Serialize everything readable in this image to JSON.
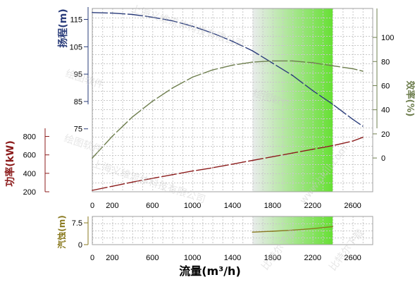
{
  "colors": {
    "head": "#2a3c7a",
    "efficiency": "#6f7f4f",
    "power": "#8c1c1c",
    "npsh": "#8a7a20",
    "band_start": "#e9ecec",
    "band_end": "#66e033",
    "grid": "#c8c8c8"
  },
  "watermarks": [
    "上海义维流体科技有限公司",
    "绘图软件",
    "绘图软件",
    "绘图软件",
    "上海义维流体科技有限公司",
    "比特尔下载",
    "www.bkill.com",
    "比特尔下载"
  ],
  "chart_data": [
    {
      "type": "line",
      "name": "head",
      "ylabel": "扬程(m)",
      "yticks": [
        75,
        85,
        95,
        105,
        115
      ],
      "ylim": [
        52,
        119
      ],
      "xlim": [
        0,
        2800
      ],
      "highlight_band": [
        1600,
        2400
      ],
      "x": [
        0,
        200,
        400,
        600,
        800,
        1000,
        1200,
        1400,
        1600,
        1800,
        2000,
        2200,
        2400,
        2600,
        2700
      ],
      "series": [
        {
          "values": [
            117.5,
            117.3,
            116.8,
            115.8,
            114.5,
            112.5,
            110.0,
            107.0,
            103.5,
            99.0,
            94.5,
            89.0,
            84.0,
            78.5,
            76.0
          ]
        }
      ]
    },
    {
      "type": "line",
      "name": "efficiency",
      "ylabel": "效率(%)",
      "yticks": [
        0,
        20,
        40,
        60,
        80,
        100
      ],
      "ylim": [
        -28,
        124
      ],
      "highlight_band": [
        1600,
        2400
      ],
      "x": [
        0,
        200,
        400,
        600,
        800,
        1000,
        1200,
        1400,
        1600,
        1800,
        2000,
        2200,
        2400,
        2600,
        2700
      ],
      "series": [
        {
          "values": [
            0,
            18,
            34,
            47,
            58,
            67,
            73,
            77,
            79.5,
            80.5,
            80.5,
            79,
            76.5,
            74,
            72
          ]
        }
      ]
    },
    {
      "type": "line",
      "name": "power",
      "ylabel": "功率(kW)",
      "yticks": [
        200,
        400,
        600,
        800
      ],
      "ylim": [
        200,
        850
      ],
      "x": [
        0,
        200,
        400,
        600,
        800,
        1000,
        1200,
        1400,
        1600,
        1800,
        2000,
        2200,
        2400,
        2600,
        2700
      ],
      "series": [
        {
          "values": [
            215,
            260,
            305,
            345,
            385,
            425,
            460,
            500,
            540,
            580,
            620,
            660,
            700,
            750,
            790
          ]
        }
      ]
    },
    {
      "type": "line",
      "name": "npsh",
      "ylabel": "汽蚀(m)",
      "xlabel": "流量(m³/h)",
      "yticks": [
        0,
        7.5
      ],
      "ylim": [
        0,
        9.7
      ],
      "xticks": [
        0,
        200,
        600,
        1000,
        1400,
        1800,
        2200,
        2600
      ],
      "x": [
        1600,
        1800,
        2000,
        2200,
        2400
      ],
      "series": [
        {
          "values": [
            4.3,
            4.6,
            5.0,
            5.5,
            6.2
          ]
        }
      ]
    }
  ],
  "labels": {
    "head_axis": "扬程(m)",
    "efficiency_axis": "效率(%)",
    "power_axis": "功率(kW)",
    "npsh_axis": "汽蚀(m)",
    "x_axis": "流量(m³/h)"
  }
}
